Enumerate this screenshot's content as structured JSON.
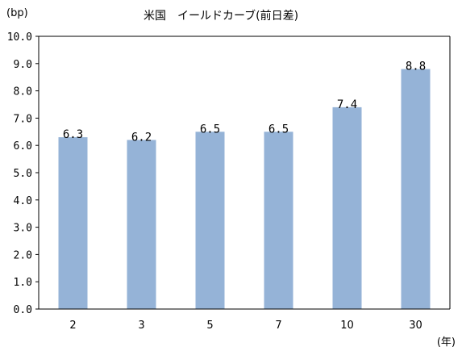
{
  "chart_data": {
    "type": "bar",
    "title": "米国　イールドカーブ(前日差)",
    "y_unit_label": "(bp)",
    "x_unit_label": "(年)",
    "categories": [
      "2",
      "3",
      "5",
      "7",
      "10",
      "30"
    ],
    "values": [
      6.3,
      6.2,
      6.5,
      6.5,
      7.4,
      8.8
    ],
    "data_labels": [
      "6.3",
      "6.2",
      "6.5",
      "6.5",
      "7.4",
      "8.8"
    ],
    "ylim": [
      0,
      10
    ],
    "y_ticks": [
      "0.0",
      "1.0",
      "2.0",
      "3.0",
      "4.0",
      "5.0",
      "6.0",
      "7.0",
      "8.0",
      "9.0",
      "10.0"
    ],
    "grid": false,
    "bar_color": "#95B3D7",
    "axis_color": "#000000"
  }
}
